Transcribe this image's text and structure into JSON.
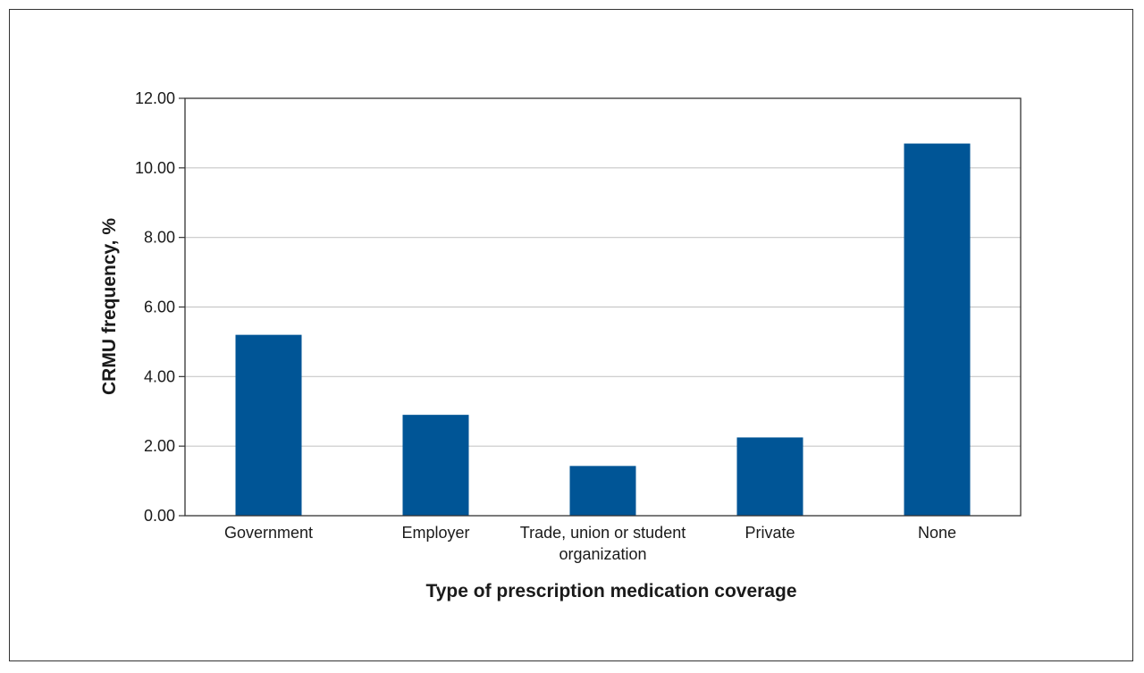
{
  "chart_data": {
    "type": "bar",
    "categories": [
      [
        "Government"
      ],
      [
        "Employer"
      ],
      [
        "Trade, union or student",
        "organization"
      ],
      [
        "Private"
      ],
      [
        "None"
      ]
    ],
    "values": [
      5.2,
      2.9,
      1.43,
      2.25,
      10.7
    ],
    "title": "",
    "xlabel": "Type of prescription medication coverage",
    "ylabel": "CRMU frequency, %",
    "ylim": [
      0,
      12
    ],
    "yticks": [
      "0.00",
      "2.00",
      "4.00",
      "6.00",
      "8.00",
      "10.00",
      "12.00"
    ],
    "ytick_values": [
      0,
      2,
      4,
      6,
      8,
      10,
      12
    ],
    "grid": true,
    "legend": "none",
    "colors": {
      "bar": "#005596",
      "grid": "#c8c8c8",
      "axis": "#333333"
    }
  }
}
